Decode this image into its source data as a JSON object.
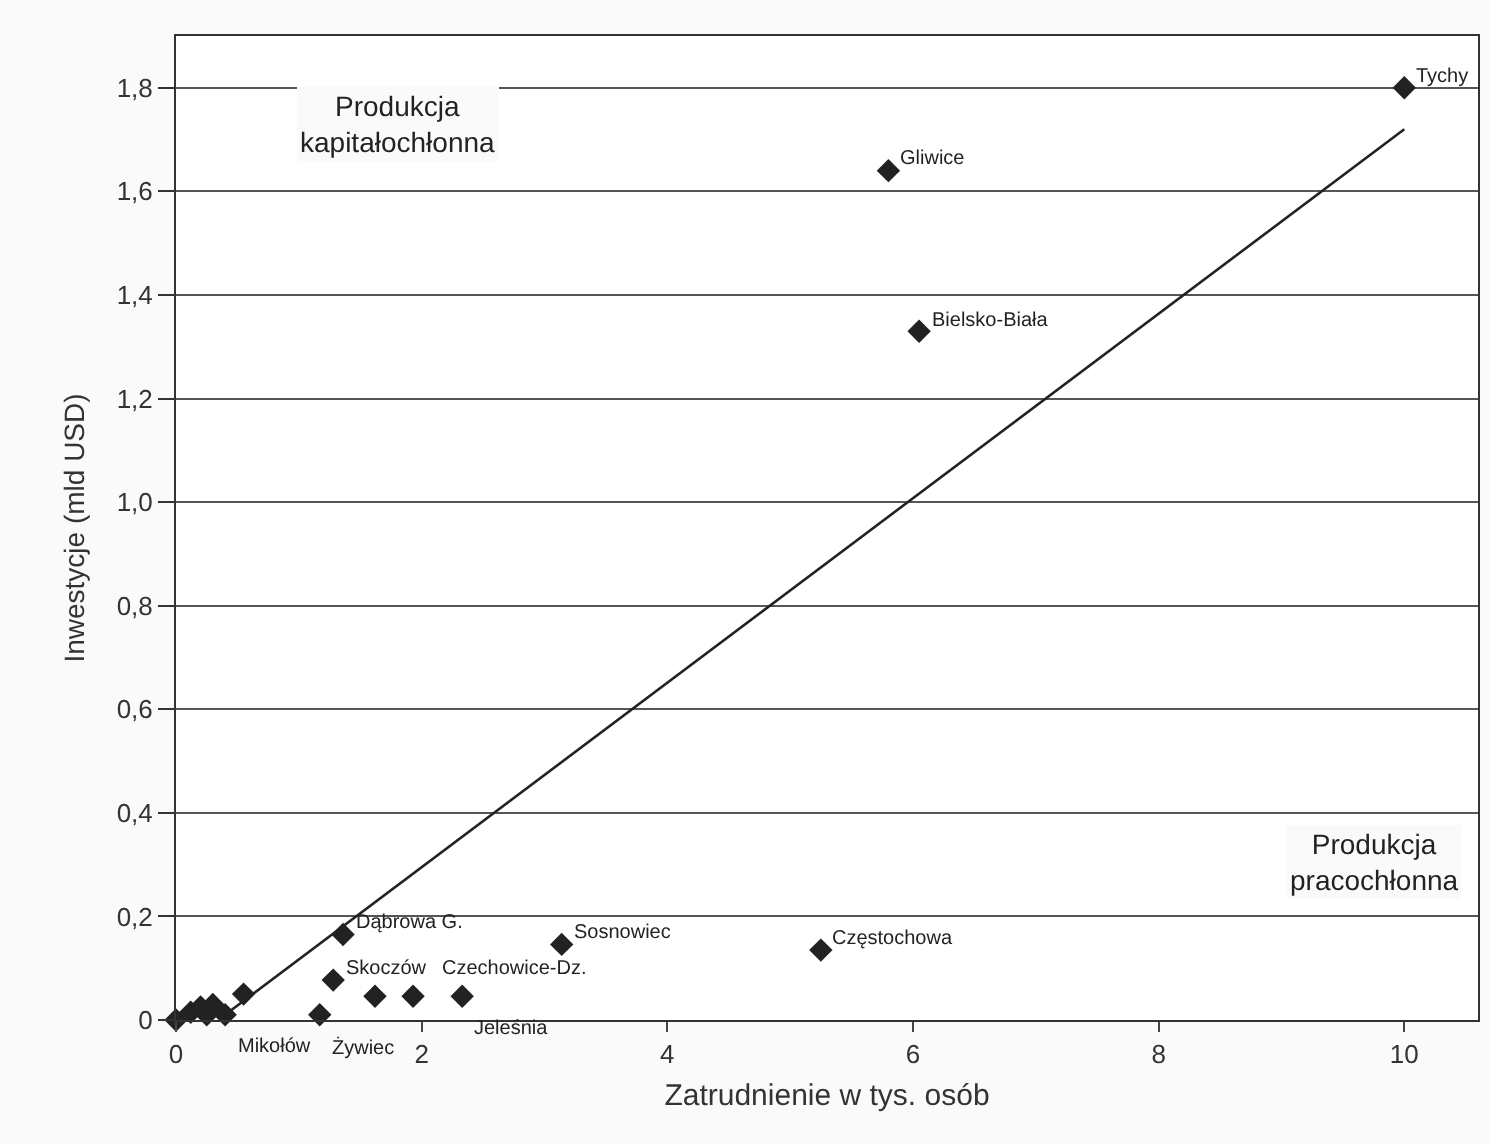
{
  "chart_data": {
    "type": "scatter",
    "xlabel": "Zatrudnienie w tys. osób",
    "ylabel": "Inwestycje (mld USD)",
    "xlim": [
      0,
      10.6
    ],
    "xticks": [
      0,
      2,
      4,
      6,
      8,
      10
    ],
    "ylim": [
      0,
      1.9
    ],
    "yticks": [
      0,
      {
        "value": 0.2,
        "label": "0,2"
      },
      {
        "value": 0.4,
        "label": "0,4"
      },
      {
        "value": 0.6,
        "label": "0,6"
      },
      {
        "value": 0.8,
        "label": "0,8"
      },
      {
        "value": 1,
        "label": "1,0"
      },
      {
        "value": 1.2,
        "label": "1,2"
      },
      {
        "value": 1.4,
        "label": "1,4"
      },
      {
        "value": 1.6,
        "label": "1,6"
      },
      {
        "value": 1.8,
        "label": "1,8"
      }
    ],
    "grid": "y",
    "series": [
      {
        "color": "#222222",
        "marker": "diamond",
        "x": [
          0,
          0.12,
          0.2,
          0.25,
          0.3,
          0.4,
          0.55,
          1.17,
          1.28,
          1.36,
          1.62,
          1.93,
          2.33,
          3.14,
          5.25,
          5.8,
          6.05,
          10
        ],
        "values": [
          0,
          0.015,
          0.025,
          0.01,
          0.03,
          0.01,
          0.05,
          0.01,
          0.077,
          0.165,
          0.046,
          0.046,
          0.046,
          0.146,
          0.135,
          1.64,
          1.33,
          1.8
        ]
      },
      {
        "type": "line",
        "color": "#222222",
        "x": [
          0.4,
          10
        ],
        "values": [
          0.01,
          1.72
        ]
      }
    ],
    "annotations": [
      {
        "text": "Tychy",
        "x": 10,
        "y": 1.8
      },
      {
        "text": "Gliwice",
        "x": 5.8,
        "y": 1.64
      },
      {
        "text": "Bielsko-Biała",
        "x": 6.05,
        "y": 1.33
      },
      {
        "text": "Częstochowa",
        "x": 5.25,
        "y": 0.135
      },
      {
        "text": "Sosnowiec",
        "x": 3.14,
        "y": 0.146
      },
      {
        "text": "Dąbrowa G.",
        "x": 1.36,
        "y": 0.165
      },
      {
        "text": "Skoczów",
        "x": 1.28,
        "y": 0.077
      },
      {
        "text": "Czechowice-Dz.",
        "x": 1.93,
        "y": 0.046
      },
      {
        "text": "Żywiec",
        "x": 1.17,
        "y": 0.01
      },
      {
        "text": "Jeleśnia",
        "x": 2.33,
        "y": 0.046
      },
      {
        "text": "Mikołów",
        "x": 0.4,
        "y": 0.01
      },
      "Produkcja\nkapitałochłonna",
      "Produkcja\npracochłonna"
    ]
  }
}
